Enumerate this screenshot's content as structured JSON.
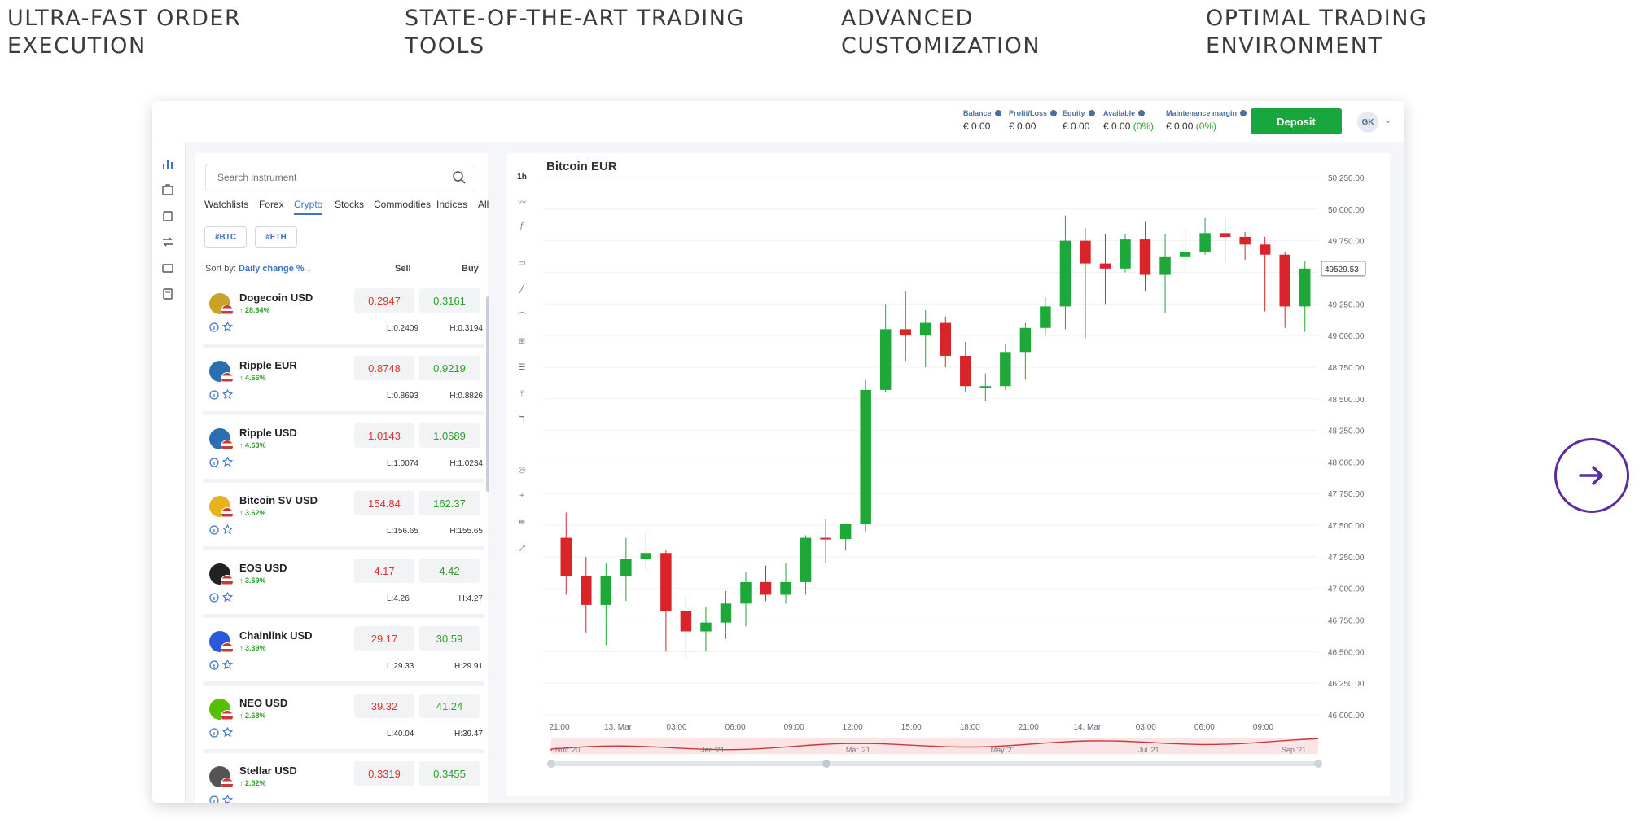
{
  "features": [
    {
      "label": "ULTRA-FAST ORDER\nEXECUTION"
    },
    {
      "label": "STATE-OF-THE-ART TRADING\nTOOLS"
    },
    {
      "label": "ADVANCED\nCUSTOMIZATION"
    },
    {
      "label": "OPTIMAL TRADING\nENVIRONMENT"
    }
  ],
  "account": {
    "balance": {
      "label": "Balance",
      "value": "€ 0.00"
    },
    "profit_loss": {
      "label": "Profit/Loss",
      "value": "€ 0.00"
    },
    "equity": {
      "label": "Equity",
      "value": "€ 0.00"
    },
    "available": {
      "label": "Available",
      "value": "€ 0.00",
      "pct": "(0%)"
    },
    "maintenance": {
      "label": "Maintenance margin",
      "value": "€ 0.00",
      "pct": "(0%)"
    },
    "deposit_label": "Deposit",
    "avatar": "GK"
  },
  "search": {
    "placeholder": "Search instrument"
  },
  "tabs": [
    "Watchlists",
    "Forex",
    "Crypto",
    "Stocks",
    "Commodities",
    "Indices",
    "All"
  ],
  "active_tab": "Crypto",
  "chips": [
    "#BTC",
    "#ETH"
  ],
  "sort": {
    "label": "Sort by:",
    "value": "Daily change %",
    "sell": "Sell",
    "buy": "Buy"
  },
  "instruments": [
    {
      "name": "Dogecoin USD",
      "change": "↑ 28.64%",
      "sell": "0.2947",
      "buy": "0.3161",
      "low": "L:0.2409",
      "high": "H:0.3194",
      "color": "#c9a227"
    },
    {
      "name": "Ripple EUR",
      "change": "↑ 4.66%",
      "sell": "0.8748",
      "buy": "0.9219",
      "low": "L:0.8693",
      "high": "H:0.8826",
      "color": "#2a6fb0"
    },
    {
      "name": "Ripple USD",
      "change": "↑ 4.63%",
      "sell": "1.0143",
      "buy": "1.0689",
      "low": "L:1.0074",
      "high": "H:1.0234",
      "color": "#2a6fb0"
    },
    {
      "name": "Bitcoin SV USD",
      "change": "↑ 3.62%",
      "sell": "154.84",
      "buy": "162.37",
      "low": "L:156.65",
      "high": "H:155.65",
      "color": "#e8b21e"
    },
    {
      "name": "EOS USD",
      "change": "↑ 3.59%",
      "sell": "4.17",
      "buy": "4.42",
      "low": "L:4.26",
      "high": "H:4.27",
      "color": "#222222"
    },
    {
      "name": "Chainlink USD",
      "change": "↑ 3.39%",
      "sell": "29.17",
      "buy": "30.59",
      "low": "L:29.33",
      "high": "H:29.91",
      "color": "#2a5ada"
    },
    {
      "name": "NEO USD",
      "change": "↑ 2.68%",
      "sell": "39.32",
      "buy": "41.24",
      "low": "L:40.04",
      "high": "H:39.47",
      "color": "#58bf00"
    },
    {
      "name": "Stellar USD",
      "change": "↑ 2.52%",
      "sell": "0.3319",
      "buy": "0.3455",
      "low": "",
      "high": "",
      "color": "#555555"
    }
  ],
  "chart": {
    "title": "Bitcoin EUR",
    "interval": "1h",
    "current_price": "49529.53"
  },
  "chart_data": {
    "type": "candlestick",
    "title": "Bitcoin EUR",
    "ylim": [
      46000,
      50250
    ],
    "y_ticks": [
      "50 250.00",
      "50 000.00",
      "49 750.00",
      "49 500.00",
      "49 250.00",
      "49 000.00",
      "48 750.00",
      "48 500.00",
      "48 250.00",
      "48 000.00",
      "47 750.00",
      "47 500.00",
      "47 250.00",
      "47 000.00",
      "46 750.00",
      "46 500.00",
      "46 250.00",
      "46 000.00"
    ],
    "x_ticks": [
      "21:00",
      "13. Mar",
      "03:00",
      "06:00",
      "09:00",
      "12:00",
      "15:00",
      "18:00",
      "21:00",
      "14. Mar",
      "03:00",
      "06:00",
      "09:00"
    ],
    "navigator_ticks": [
      "Nov '20",
      "Jan '21",
      "Mar '21",
      "May '21",
      "Jul '21",
      "Sep '21"
    ],
    "candles": [
      {
        "o": 47400,
        "h": 47600,
        "l": 46950,
        "c": 47100
      },
      {
        "o": 47100,
        "h": 47250,
        "l": 46650,
        "c": 46870
      },
      {
        "o": 46870,
        "h": 47200,
        "l": 46550,
        "c": 47100
      },
      {
        "o": 47100,
        "h": 47400,
        "l": 46900,
        "c": 47230
      },
      {
        "o": 47230,
        "h": 47450,
        "l": 47150,
        "c": 47280
      },
      {
        "o": 47280,
        "h": 47300,
        "l": 46500,
        "c": 46820
      },
      {
        "o": 46820,
        "h": 46920,
        "l": 46450,
        "c": 46660
      },
      {
        "o": 46660,
        "h": 46850,
        "l": 46500,
        "c": 46730
      },
      {
        "o": 46730,
        "h": 46980,
        "l": 46600,
        "c": 46880
      },
      {
        "o": 46880,
        "h": 47130,
        "l": 46700,
        "c": 47050
      },
      {
        "o": 47050,
        "h": 47180,
        "l": 46900,
        "c": 46950
      },
      {
        "o": 46950,
        "h": 47200,
        "l": 46880,
        "c": 47050
      },
      {
        "o": 47050,
        "h": 47420,
        "l": 46950,
        "c": 47400
      },
      {
        "o": 47400,
        "h": 47550,
        "l": 47200,
        "c": 47390
      },
      {
        "o": 47390,
        "h": 47480,
        "l": 47300,
        "c": 47510
      },
      {
        "o": 47510,
        "h": 48650,
        "l": 47450,
        "c": 48570
      },
      {
        "o": 48570,
        "h": 49250,
        "l": 48550,
        "c": 49050
      },
      {
        "o": 49050,
        "h": 49350,
        "l": 48800,
        "c": 49000
      },
      {
        "o": 49000,
        "h": 49200,
        "l": 48750,
        "c": 49100
      },
      {
        "o": 49100,
        "h": 49150,
        "l": 48750,
        "c": 48840
      },
      {
        "o": 48840,
        "h": 48950,
        "l": 48550,
        "c": 48600
      },
      {
        "o": 48600,
        "h": 48700,
        "l": 48480,
        "c": 48600
      },
      {
        "o": 48600,
        "h": 48930,
        "l": 48570,
        "c": 48870
      },
      {
        "o": 48870,
        "h": 49100,
        "l": 48650,
        "c": 49060
      },
      {
        "o": 49060,
        "h": 49300,
        "l": 49000,
        "c": 49230
      },
      {
        "o": 49230,
        "h": 49950,
        "l": 49050,
        "c": 49750
      },
      {
        "o": 49750,
        "h": 49850,
        "l": 48980,
        "c": 49570
      },
      {
        "o": 49570,
        "h": 49800,
        "l": 49250,
        "c": 49530
      },
      {
        "o": 49530,
        "h": 49800,
        "l": 49500,
        "c": 49760
      },
      {
        "o": 49760,
        "h": 49900,
        "l": 49350,
        "c": 49480
      },
      {
        "o": 49480,
        "h": 49800,
        "l": 49180,
        "c": 49620
      },
      {
        "o": 49620,
        "h": 49850,
        "l": 49520,
        "c": 49660
      },
      {
        "o": 49660,
        "h": 49930,
        "l": 49640,
        "c": 49810
      },
      {
        "o": 49810,
        "h": 49930,
        "l": 49580,
        "c": 49780
      },
      {
        "o": 49780,
        "h": 49820,
        "l": 49600,
        "c": 49720
      },
      {
        "o": 49720,
        "h": 49780,
        "l": 49190,
        "c": 49640
      },
      {
        "o": 49640,
        "h": 49660,
        "l": 49060,
        "c": 49230
      },
      {
        "o": 49230,
        "h": 49590,
        "l": 49030,
        "c": 49530
      }
    ]
  }
}
